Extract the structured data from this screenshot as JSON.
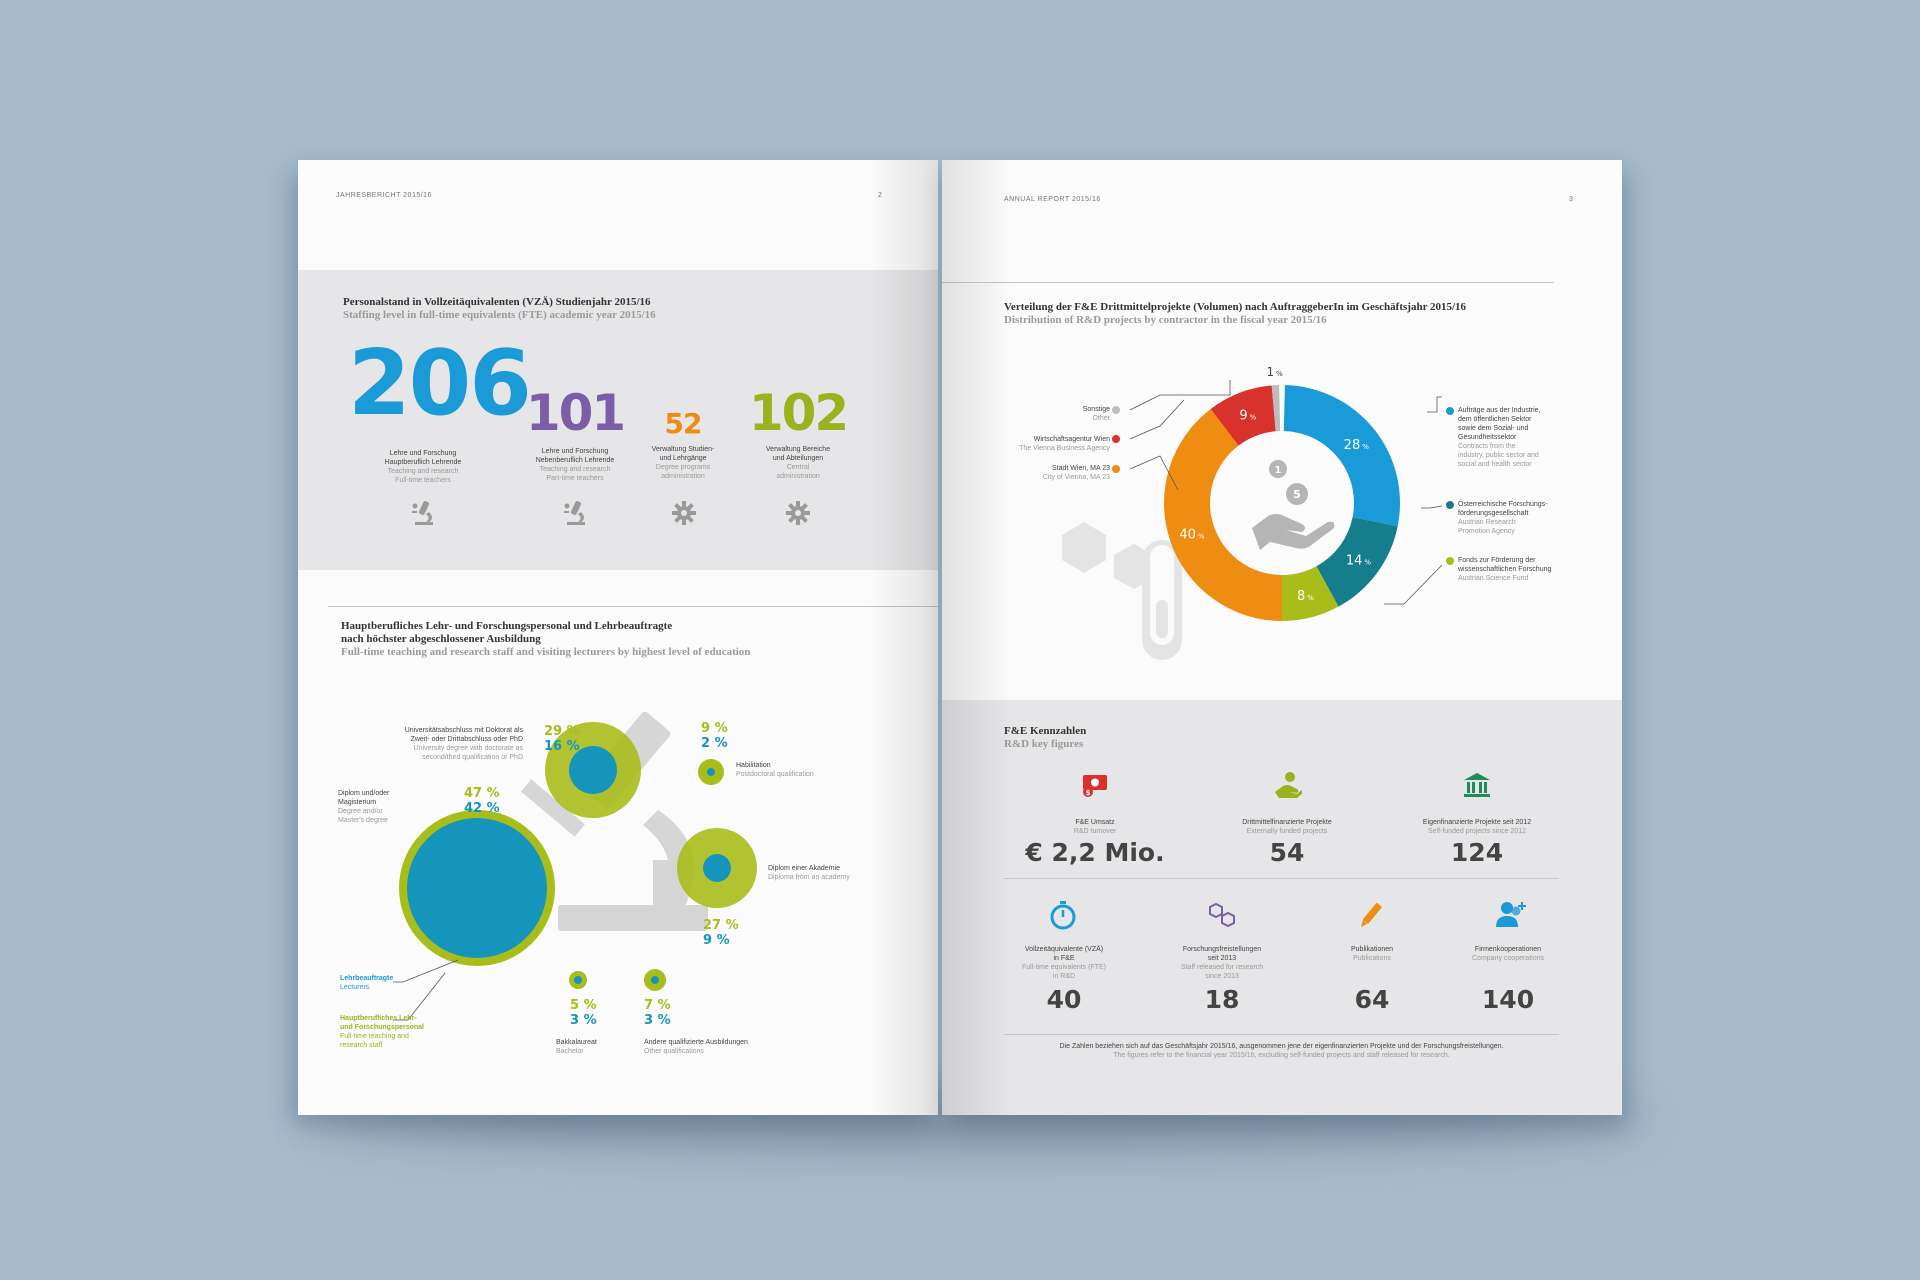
{
  "left_page": {
    "running_header": "JAHRESBERICHT 2015/16",
    "page_number": "2",
    "staffing": {
      "title_de": "Personalstand in Vollzeitäquivalenten (VZÄ) Studienjahr 2015/16",
      "title_en": "Staffing level in full-time equivalents (FTE) academic year 2015/16",
      "items": [
        {
          "value": "206",
          "de1": "Lehre und Forschung",
          "de2": "Hauptberuflich Lehrende",
          "en1": "Teaching and research",
          "en2": "Full-time teachers",
          "color": "#1a9ad6",
          "icon": "microscope-icon"
        },
        {
          "value": "101",
          "de1": "Lehre und Forschung",
          "de2": "Nebenberuflich Lehrende",
          "en1": "Teaching and research",
          "en2": "Part-time teachers",
          "color": "#7b5ea7",
          "icon": "microscope-icon"
        },
        {
          "value": "52",
          "de1": "Verwaltung Studien-",
          "de2": "und Lehrgänge",
          "en1": "Degree programs",
          "en2": "administration",
          "color": "#ef8c12",
          "icon": "gear-icon"
        },
        {
          "value": "102",
          "de1": "Verwaltung Bereiche",
          "de2": "und Abteilungen",
          "en1": "Central",
          "en2": "administration",
          "color": "#9bb21e",
          "icon": "gear-icon"
        }
      ]
    },
    "education": {
      "title_de1": "Hauptberufliches Lehr- und Forschungspersonal und Lehrbeauftragte",
      "title_de2": "nach höchster abgeschlossener Ausbildung",
      "title_en": "Full-time teaching and research staff and visiting lecturers by highest level of education",
      "categories": [
        {
          "de1": "Universitätsabschluss mit Doktorat als",
          "de2": "Zweit- oder Drittabschluss oder PhD",
          "en1": "University degree with doctorate as",
          "en2": "second/third qualification or PhD",
          "fulltime": "29 %",
          "lecturers": "16 %"
        },
        {
          "de1": "Habilitation",
          "de2": "",
          "en1": "Postdoctoral qualification",
          "en2": "",
          "fulltime": "9 %",
          "lecturers": "2 %"
        },
        {
          "de1": "Diplom und/oder",
          "de2": "Magisterium",
          "en1": "Degree and/or",
          "en2": "Master's degree",
          "fulltime": "47 %",
          "lecturers": "42 %"
        },
        {
          "de1": "Diplom einer Akademie",
          "de2": "",
          "en1": "Diploma from an academy",
          "en2": "",
          "fulltime": "27 %",
          "lecturers": "9 %"
        },
        {
          "de1": "Bakkalaureat",
          "de2": "",
          "en1": "Bachelor",
          "en2": "",
          "fulltime": "5 %",
          "lecturers": "3 %"
        },
        {
          "de1": "Andere qualifizierte Ausbildungen",
          "de2": "",
          "en1": "Other qualifications",
          "en2": "",
          "fulltime": "7 %",
          "lecturers": "3 %"
        }
      ],
      "legend": {
        "lecturers_de": "Lehrbeauftragte",
        "lecturers_en": "Lecturers",
        "fulltime_de1": "Hauptberufliches Lehr-",
        "fulltime_de2": "und Forschungspersonal",
        "fulltime_en1": "Full-time teaching and",
        "fulltime_en2": "research staff"
      },
      "colors": {
        "fulltime": "#a9bd1a",
        "lecturers": "#1695bc"
      }
    }
  },
  "right_page": {
    "running_header": "ANNUAL REPORT 2015/16",
    "page_number": "3",
    "rnd_distribution": {
      "title_de": "Verteilung der F&E Drittmittelprojekte (Volumen) nach AuftraggeberIn im Geschäftsjahr 2015/16",
      "title_en": "Distribution of R&D projects by contractor in the fiscal year 2015/16",
      "percent_sign": "%",
      "labels": [
        {
          "de": "Sonstige",
          "en": "Other"
        },
        {
          "de": "Wirtschaftsagentur Wien",
          "en": "The Vienna Business Agency"
        },
        {
          "de": "Stadt Wien, MA 23",
          "en": "City of Vienna, MA 23"
        },
        {
          "de1": "Aufträge aus der Industrie,",
          "de2": "dem öffentlichen Sektor",
          "de3": "sowie dem Sozial- und",
          "de4": "Gesundheitssektor",
          "en1": "Contracts from the",
          "en2": "industry, public sector and",
          "en3": "social and health sector"
        },
        {
          "de1": "Österreichische Forschungs-",
          "de2": "förderungsgesellschaft",
          "en1": "Austrian Research",
          "en2": "Promotion Agency"
        },
        {
          "de1": "Fonds zur Förderung der",
          "de2": "wissenschaftlichen Forschung",
          "en1": "Austrian Science Fund"
        }
      ],
      "center_icon_badges": [
        "1",
        "5"
      ]
    },
    "key_figures": {
      "title_de": "F&E Kennzahlen",
      "title_en": "R&D key figures",
      "row1": [
        {
          "de": "F&E Umsatz",
          "en": "R&D turnover",
          "value": "€ 2,2 Mio.",
          "icon": "money-icon",
          "color": "#d9312b"
        },
        {
          "de": "Drittmittelfinanzierte Projekte",
          "en": "Externally funded projects",
          "value": "54",
          "icon": "hand-coin-icon",
          "color": "#9bb21e"
        },
        {
          "de": "Eigenfinanzierte Projekte seit 2012",
          "en": "Self-funded projects since 2012",
          "value": "124",
          "icon": "bank-icon",
          "color": "#1f8a5a"
        }
      ],
      "row2": [
        {
          "de1": "Vollzeitäquivalente (VZÄ)",
          "de2": "in F&E",
          "en1": "Full-time equivalents (FTE)",
          "en2": "in R&D",
          "value": "40",
          "icon": "stopwatch-icon",
          "color": "#1a9ad6"
        },
        {
          "de1": "Forschungsfreistellungen",
          "de2": "seit 2013",
          "en1": "Staff released for research",
          "en2": "since 2013",
          "value": "18",
          "icon": "molecule-icon",
          "color": "#7b5ea7"
        },
        {
          "de1": "Publikationen",
          "de2": "",
          "en1": "Publications",
          "en2": "",
          "value": "64",
          "icon": "pen-icon",
          "color": "#ef8c12"
        },
        {
          "de1": "Firmenkooperationen",
          "de2": "",
          "en1": "Company cooperations",
          "en2": "",
          "value": "140",
          "icon": "add-user-icon",
          "color": "#1a9ad6"
        }
      ],
      "footer_de": "Die Zahlen beziehen sich auf das Geschäftsjahr 2015/16, ausgenommen jene der eigenfinanzierten Projekte und der Forschungsfreistellungen.",
      "footer_en": "The figures refer to the financial year 2015/16, excluding self-funded projects and staff released for research."
    }
  },
  "chart_data": [
    {
      "type": "pie",
      "title": "Verteilung der F&E Drittmittelprojekte (Volumen) nach AuftraggeberIn im Geschäftsjahr 2015/16",
      "categories": [
        "Aufträge aus der Industrie, dem öffentlichen Sektor sowie dem Sozial- und Gesundheitssektor",
        "Österreichische Forschungsförderungsgesellschaft",
        "Fonds zur Förderung der wissenschaftlichen Forschung",
        "Stadt Wien, MA 23",
        "Wirtschaftsagentur Wien",
        "Sonstige"
      ],
      "values": [
        28,
        14,
        8,
        40,
        9,
        1
      ],
      "colors": [
        "#1a9ad6",
        "#167d8c",
        "#a9bd1a",
        "#ef8c12",
        "#d9312b",
        "#bdbdbd"
      ]
    },
    {
      "type": "bar",
      "title": "Hauptberufliches Lehr- und Forschungspersonal und Lehrbeauftragte nach höchster abgeschlossener Ausbildung",
      "categories": [
        "Universitätsabschluss mit Doktorat als Zweit- oder Drittabschluss oder PhD",
        "Habilitation",
        "Diplom und/oder Magisterium",
        "Diplom einer Akademie",
        "Bakkalaureat",
        "Andere qualifizierte Ausbildungen"
      ],
      "series": [
        {
          "name": "Hauptberufliches Lehr- und Forschungspersonal",
          "values": [
            29,
            9,
            47,
            27,
            5,
            7
          ]
        },
        {
          "name": "Lehrbeauftragte",
          "values": [
            16,
            2,
            42,
            9,
            3,
            3
          ]
        }
      ]
    }
  ]
}
